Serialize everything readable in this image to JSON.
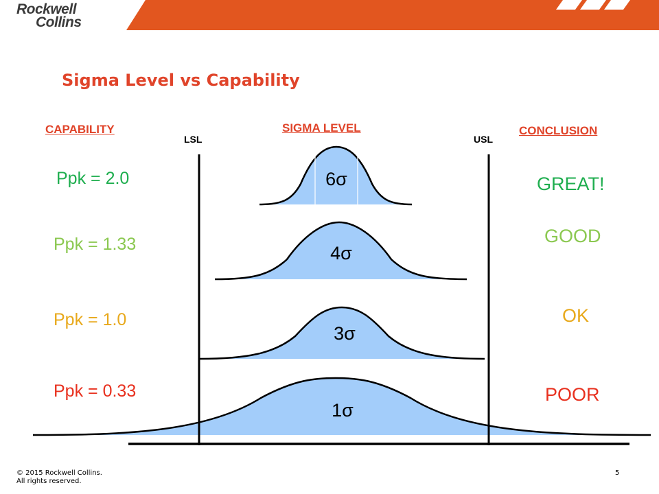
{
  "brand": {
    "logo_line1": "Rockwell",
    "logo_line2": "Collins"
  },
  "title": "Sigma Level vs Capability",
  "headers": {
    "capability": "CAPABILITY",
    "sigma_level": "SIGMA LEVEL",
    "conclusion": "CONCLUSION"
  },
  "spec_limits": {
    "lower": "LSL",
    "upper": "USL"
  },
  "rows": [
    {
      "ppk": "Ppk = 2.0",
      "sigma": "6σ",
      "conclusion": "GREAT!",
      "color": "#1fae4f"
    },
    {
      "ppk": "Ppk = 1.33",
      "sigma": "4σ",
      "conclusion": "GOOD",
      "color": "#8bc850"
    },
    {
      "ppk": "Ppk = 1.0",
      "sigma": "3σ",
      "conclusion": "OK",
      "color": "#e8a91c"
    },
    {
      "ppk": "Ppk = 0.33",
      "sigma": "1σ",
      "conclusion": "POOR",
      "color": "#e8311f"
    }
  ],
  "colors": {
    "brand_orange": "#e2561f",
    "title_red": "#e0442a",
    "curve_fill": "#a3cdfa"
  },
  "footer": {
    "copyright_line1": "© 2015 Rockwell Collins.",
    "copyright_line2": "All rights reserved.",
    "page": "5"
  }
}
